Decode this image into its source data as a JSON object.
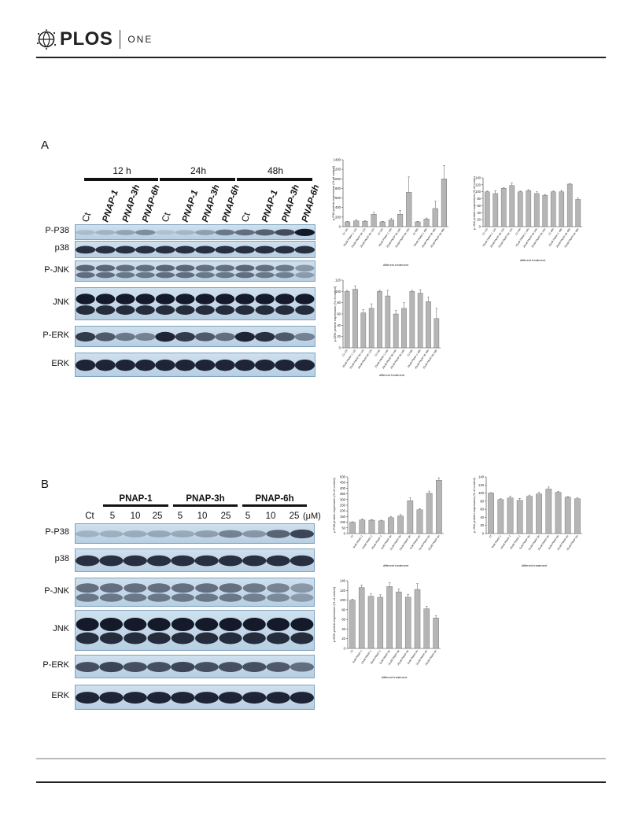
{
  "header": {
    "brand": "PLOS",
    "journal": "ONE"
  },
  "panel_a": {
    "letter": "A",
    "time_groups": [
      "12 h",
      "24h",
      "48h"
    ],
    "lane_labels": [
      "Ct",
      "PNAP-1",
      "PNAP-3h",
      "PNAP-6h",
      "Ct",
      "PNAP-1",
      "PNAP-3h",
      "PNAP-6h",
      "Ct",
      "PNAP-1",
      "PNAP-3h",
      "PNAP-6h"
    ],
    "blots": [
      {
        "label": "P-P38",
        "intensity": [
          0.15,
          0.2,
          0.28,
          0.4,
          0.12,
          0.18,
          0.3,
          0.5,
          0.55,
          0.62,
          0.72,
          0.95
        ]
      },
      {
        "label": "p38",
        "intensity": [
          0.85,
          0.85,
          0.85,
          0.85,
          0.85,
          0.85,
          0.85,
          0.85,
          0.85,
          0.85,
          0.85,
          0.85
        ]
      },
      {
        "label": "P-JNK",
        "intensity": [
          0.6,
          0.6,
          0.55,
          0.55,
          0.6,
          0.6,
          0.55,
          0.55,
          0.6,
          0.55,
          0.5,
          0.35
        ]
      },
      {
        "label": "JNK",
        "intensity": [
          0.95,
          0.95,
          0.95,
          0.95,
          0.95,
          0.95,
          0.95,
          0.95,
          0.95,
          0.95,
          0.95,
          0.95
        ]
      },
      {
        "label": "P-ERK",
        "intensity": [
          0.8,
          0.65,
          0.5,
          0.45,
          0.9,
          0.8,
          0.65,
          0.55,
          0.9,
          0.85,
          0.65,
          0.45
        ]
      },
      {
        "label": "ERK",
        "intensity": [
          0.9,
          0.9,
          0.9,
          0.9,
          0.9,
          0.9,
          0.9,
          0.9,
          0.9,
          0.9,
          0.9,
          0.9
        ]
      }
    ]
  },
  "panel_b": {
    "letter": "B",
    "groups": [
      "PNAP-1",
      "PNAP-3h",
      "PNAP-6h"
    ],
    "lane_labels": [
      "Ct",
      "5",
      "10",
      "25",
      "5",
      "10",
      "25",
      "5",
      "10",
      "25"
    ],
    "unit": "(μM)",
    "blots": [
      {
        "label": "P-P38",
        "intensity": [
          0.2,
          0.22,
          0.24,
          0.26,
          0.25,
          0.3,
          0.45,
          0.35,
          0.6,
          0.75
        ]
      },
      {
        "label": "p38",
        "intensity": [
          0.85,
          0.85,
          0.85,
          0.85,
          0.85,
          0.85,
          0.85,
          0.85,
          0.85,
          0.85
        ]
      },
      {
        "label": "P-JNK",
        "intensity": [
          0.55,
          0.55,
          0.55,
          0.55,
          0.55,
          0.55,
          0.55,
          0.5,
          0.45,
          0.35
        ]
      },
      {
        "label": "JNK",
        "intensity": [
          0.95,
          0.95,
          0.95,
          0.95,
          0.95,
          0.95,
          0.95,
          0.95,
          0.95,
          0.95
        ]
      },
      {
        "label": "P-ERK",
        "intensity": [
          0.7,
          0.75,
          0.7,
          0.7,
          0.75,
          0.7,
          0.7,
          0.7,
          0.65,
          0.55
        ]
      },
      {
        "label": "ERK",
        "intensity": [
          0.9,
          0.9,
          0.9,
          0.9,
          0.9,
          0.9,
          0.9,
          0.9,
          0.9,
          0.9
        ]
      }
    ]
  },
  "chart_data": [
    {
      "type": "bar",
      "ylabel": "p-P38 protein expression (% of control)",
      "xlabel": "different treatment",
      "ylim": [
        0,
        1400
      ],
      "yticks": [
        0,
        200,
        400,
        600,
        800,
        1000,
        1200,
        1400
      ],
      "categories": [
        "Ct 12h",
        "25uM PNAP-1 12h",
        "25uM PNAP-3h 12h",
        "25uM PNAP-6h 12h",
        "Ct 24h",
        "25uM PNAP-1 24h",
        "25uM PNAP-3h 24h",
        "25uM PNAP-6h 24h",
        "Ct 48h",
        "25uM PNAP-1 48h",
        "25uM PNAP-3h 48h",
        "25uM PNAP-6h 48h"
      ],
      "values": [
        100,
        120,
        110,
        260,
        100,
        140,
        260,
        720,
        100,
        160,
        380,
        1000
      ],
      "errors": [
        10,
        20,
        15,
        40,
        10,
        30,
        80,
        320,
        10,
        20,
        150,
        280
      ]
    },
    {
      "type": "bar",
      "ylabel": "p-JNK protein expression (% of control)",
      "xlabel": "different treatment",
      "ylim": [
        0,
        140
      ],
      "yticks": [
        0,
        20,
        40,
        60,
        80,
        100,
        120,
        140
      ],
      "categories": [
        "Ct 12h",
        "25uM PNAP-1 12h",
        "25uM PNAP-3h 12h",
        "25uM PNAP-6h 12h",
        "Ct 24h",
        "25uM PNAP-1 24h",
        "25uM PNAP-3h 24h",
        "25uM PNAP-6h 24h",
        "Ct 48h",
        "25uM PNAP-1 48h",
        "25uM PNAP-3h 48h",
        "25uM PNAP-6h 48h"
      ],
      "values": [
        100,
        95,
        110,
        118,
        100,
        103,
        95,
        90,
        100,
        100,
        122,
        78
      ],
      "errors": [
        2,
        8,
        2,
        8,
        2,
        3,
        5,
        2,
        2,
        4,
        2,
        4
      ]
    },
    {
      "type": "bar",
      "ylabel": "p-ERK protein expression (% of control)",
      "xlabel": "different treatment",
      "ylim": [
        0,
        120
      ],
      "yticks": [
        0,
        20,
        40,
        60,
        80,
        100,
        120
      ],
      "categories": [
        "Ct 12h",
        "25uM PNAP-1 12h",
        "25uM PNAP-3h 12h",
        "25uM PNAP-6h 12h",
        "Ct 24h",
        "25uM PNAP-1 24h",
        "25uM PNAP-3h 24h",
        "25uM PNAP-6h 24h",
        "Ct 48h",
        "25uM PNAP-1 48h",
        "25uM PNAP-3h 48h",
        "25uM PNAP-6h 48h"
      ],
      "values": [
        100,
        104,
        62,
        70,
        100,
        92,
        60,
        70,
        100,
        97,
        82,
        52
      ],
      "errors": [
        2,
        6,
        6,
        8,
        2,
        10,
        6,
        10,
        2,
        6,
        8,
        18
      ]
    },
    {
      "type": "bar",
      "ylabel": "p-P38 protein expression (% of control)",
      "xlabel": "different treatment",
      "ylim": [
        0,
        500
      ],
      "yticks": [
        0,
        50,
        100,
        150,
        200,
        250,
        300,
        350,
        400,
        450,
        500
      ],
      "categories": [
        "Ct",
        "5uM PNAP-1",
        "10uM PNAP-1",
        "25uM PNAP-1",
        "5uM PNAP-3h",
        "10uM PNAP-3h",
        "25uM PNAP-3h",
        "5uM PNAP-6h",
        "10uM PNAP-6h",
        "25uM PNAP-6h"
      ],
      "values": [
        100,
        120,
        118,
        112,
        140,
        155,
        290,
        210,
        355,
        470
      ],
      "errors": [
        4,
        10,
        6,
        6,
        10,
        14,
        24,
        10,
        20,
        22
      ]
    },
    {
      "type": "bar",
      "ylabel": "p-JNK protein expression (% of control)",
      "xlabel": "different treatment",
      "ylim": [
        0,
        140
      ],
      "yticks": [
        0,
        20,
        40,
        60,
        80,
        100,
        120,
        140
      ],
      "categories": [
        "Ct",
        "5uM PNAP-1",
        "10uM PNAP-1",
        "25uM PNAP-1",
        "5uM PNAP-3h",
        "10uM PNAP-3h",
        "25uM PNAP-3h",
        "5uM PNAP-6h",
        "10uM PNAP-6h",
        "25uM PNAP-6h"
      ],
      "values": [
        100,
        84,
        88,
        82,
        92,
        98,
        110,
        102,
        90,
        86
      ],
      "errors": [
        1,
        2,
        4,
        5,
        3,
        4,
        5,
        2,
        1,
        2
      ]
    },
    {
      "type": "bar",
      "ylabel": "p-ERK protein expression (% of control)",
      "xlabel": "different treatment",
      "ylim": [
        0,
        140
      ],
      "yticks": [
        0,
        20,
        40,
        60,
        80,
        100,
        120,
        140
      ],
      "categories": [
        "Ct",
        "5uM PNAP-1",
        "10uM PNAP-1",
        "25uM PNAP-1",
        "5uM PNAP-3h",
        "10uM PNAP-3h",
        "25uM PNAP-3h",
        "5uM PNAP-6h",
        "10uM PNAP-6h",
        "25uM PNAP-6h"
      ],
      "values": [
        100,
        126,
        108,
        106,
        128,
        117,
        106,
        122,
        82,
        63
      ],
      "errors": [
        2,
        5,
        5,
        5,
        8,
        6,
        6,
        12,
        5,
        5
      ]
    }
  ]
}
